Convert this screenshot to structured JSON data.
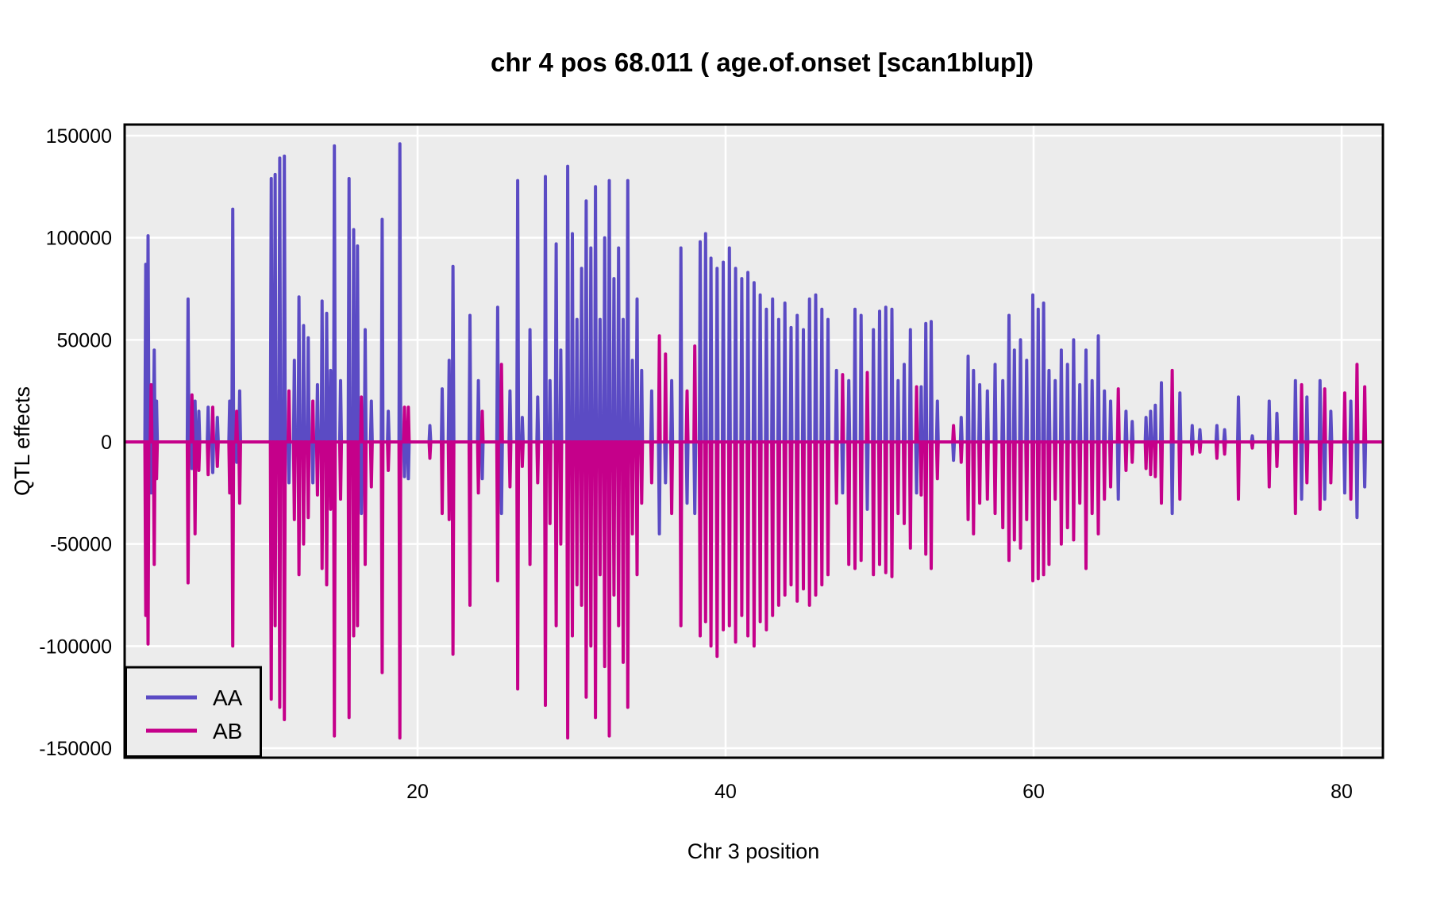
{
  "title": "chr 4 pos 68.011 ( age.of.onset  [scan1blup])",
  "chart_data": {
    "type": "line",
    "title": "chr 4 pos 68.011 ( age.of.onset  [scan1blup])",
    "xlabel": "Chr 3 position",
    "ylabel": "QTL effects",
    "x_ticks": [
      20,
      40,
      60,
      80
    ],
    "y_ticks": [
      150000,
      100000,
      50000,
      0,
      -50000,
      -100000,
      -150000
    ],
    "xlim": [
      1.0,
      82.7
    ],
    "ylim": [
      -155000,
      155400
    ],
    "grid": {
      "major_gridlines": true,
      "minor_gridlines": false
    },
    "legend": {
      "position": "bottom-left",
      "entries": [
        {
          "label": "AA",
          "color": "#5b4bc4"
        },
        {
          "label": "AB",
          "color": "#c5008a"
        }
      ]
    },
    "series_model": "Each triplet is [chr3_position, AA_effect, AB_effect]; both series sit at 0 between spikes (baseline drawn across full x-range).",
    "spikes": [
      [
        2.35,
        87000,
        -85000
      ],
      [
        2.5,
        101000,
        -99000
      ],
      [
        2.7,
        -25000,
        28000
      ],
      [
        2.9,
        45000,
        -60000
      ],
      [
        3.05,
        20000,
        -18000
      ],
      [
        5.1,
        70000,
        -69000
      ],
      [
        5.35,
        -13000,
        23000
      ],
      [
        5.55,
        20000,
        -45000
      ],
      [
        5.8,
        15000,
        -14000
      ],
      [
        6.4,
        17000,
        -16000
      ],
      [
        6.7,
        -15000,
        17000
      ],
      [
        7.0,
        12000,
        -12000
      ],
      [
        7.8,
        20000,
        -25000
      ],
      [
        8.0,
        114000,
        -100000
      ],
      [
        8.25,
        -10000,
        15000
      ],
      [
        8.45,
        25000,
        -30000
      ],
      [
        10.5,
        129000,
        -126000
      ],
      [
        10.75,
        131000,
        -90000
      ],
      [
        11.05,
        139000,
        -130000
      ],
      [
        11.35,
        140000,
        -136000
      ],
      [
        11.65,
        -20000,
        25000
      ],
      [
        12.0,
        40000,
        -38000
      ],
      [
        12.3,
        71000,
        -65000
      ],
      [
        12.6,
        57000,
        -50000
      ],
      [
        12.9,
        51000,
        -37000
      ],
      [
        13.2,
        -20000,
        20000
      ],
      [
        13.5,
        28000,
        -26000
      ],
      [
        13.8,
        69000,
        -62000
      ],
      [
        14.1,
        63000,
        -70000
      ],
      [
        14.35,
        35000,
        -33000
      ],
      [
        14.6,
        145000,
        -144000
      ],
      [
        15.0,
        30000,
        -28000
      ],
      [
        15.55,
        129000,
        -135000
      ],
      [
        15.85,
        104000,
        -95000
      ],
      [
        16.1,
        96000,
        -90000
      ],
      [
        16.35,
        -35000,
        22000
      ],
      [
        16.6,
        55000,
        -60000
      ],
      [
        17.0,
        20000,
        -22000
      ],
      [
        17.7,
        109000,
        -113000
      ],
      [
        18.1,
        15000,
        -14000
      ],
      [
        18.85,
        146000,
        -145000
      ],
      [
        19.15,
        -17000,
        17000
      ],
      [
        19.4,
        -18000,
        17000
      ],
      [
        20.8,
        8000,
        -8000
      ],
      [
        21.6,
        26000,
        -35000
      ],
      [
        22.05,
        40000,
        -38000
      ],
      [
        22.3,
        86000,
        -104000
      ],
      [
        23.4,
        62000,
        -80000
      ],
      [
        23.95,
        30000,
        -25000
      ],
      [
        24.2,
        -18000,
        15000
      ],
      [
        25.2,
        66000,
        -68000
      ],
      [
        25.45,
        -35000,
        38000
      ],
      [
        26.0,
        25000,
        -22000
      ],
      [
        26.5,
        128000,
        -121000
      ],
      [
        26.8,
        12000,
        -12000
      ],
      [
        27.3,
        55000,
        -60000
      ],
      [
        27.8,
        22000,
        -20000
      ],
      [
        28.3,
        130000,
        -129000
      ],
      [
        28.6,
        30000,
        -40000
      ],
      [
        29.0,
        97000,
        -90000
      ],
      [
        29.3,
        45000,
        -50000
      ],
      [
        29.75,
        135000,
        -145000
      ],
      [
        30.05,
        102000,
        -95000
      ],
      [
        30.35,
        60000,
        -70000
      ],
      [
        30.65,
        85000,
        -80000
      ],
      [
        30.95,
        118000,
        -125000
      ],
      [
        31.25,
        95000,
        -100000
      ],
      [
        31.55,
        125000,
        -135000
      ],
      [
        31.85,
        60000,
        -65000
      ],
      [
        32.15,
        100000,
        -110000
      ],
      [
        32.45,
        128000,
        -144000
      ],
      [
        32.75,
        80000,
        -75000
      ],
      [
        33.05,
        95000,
        -90000
      ],
      [
        33.35,
        60000,
        -108000
      ],
      [
        33.65,
        128000,
        -130000
      ],
      [
        33.95,
        40000,
        -45000
      ],
      [
        34.25,
        70000,
        -65000
      ],
      [
        34.55,
        35000,
        -30000
      ],
      [
        35.2,
        25000,
        -20000
      ],
      [
        35.7,
        -45000,
        52000
      ],
      [
        36.1,
        -20000,
        43000
      ],
      [
        36.5,
        30000,
        -35000
      ],
      [
        37.1,
        95000,
        -90000
      ],
      [
        37.5,
        -30000,
        25000
      ],
      [
        38.0,
        -35000,
        47000
      ],
      [
        38.35,
        98000,
        -95000
      ],
      [
        38.7,
        102000,
        -88000
      ],
      [
        39.05,
        90000,
        -100000
      ],
      [
        39.45,
        85000,
        -105000
      ],
      [
        39.85,
        88000,
        -92000
      ],
      [
        40.25,
        95000,
        -90000
      ],
      [
        40.65,
        85000,
        -98000
      ],
      [
        41.05,
        80000,
        -85000
      ],
      [
        41.45,
        83000,
        -95000
      ],
      [
        41.85,
        78000,
        -100000
      ],
      [
        42.25,
        72000,
        -88000
      ],
      [
        42.65,
        65000,
        -92000
      ],
      [
        43.05,
        70000,
        -85000
      ],
      [
        43.45,
        60000,
        -80000
      ],
      [
        43.85,
        68000,
        -75000
      ],
      [
        44.25,
        56000,
        -70000
      ],
      [
        44.65,
        62000,
        -78000
      ],
      [
        45.05,
        55000,
        -72000
      ],
      [
        45.45,
        70000,
        -80000
      ],
      [
        45.85,
        72000,
        -75000
      ],
      [
        46.25,
        65000,
        -70000
      ],
      [
        46.65,
        60000,
        -65000
      ],
      [
        47.2,
        35000,
        -30000
      ],
      [
        47.6,
        -25000,
        33000
      ],
      [
        48.0,
        30000,
        -60000
      ],
      [
        48.4,
        65000,
        -62000
      ],
      [
        48.8,
        62000,
        -58000
      ],
      [
        49.2,
        -33000,
        34000
      ],
      [
        49.6,
        55000,
        -65000
      ],
      [
        50.0,
        64000,
        -60000
      ],
      [
        50.4,
        66000,
        -64000
      ],
      [
        50.8,
        65000,
        -66000
      ],
      [
        51.2,
        30000,
        -35000
      ],
      [
        51.6,
        38000,
        -40000
      ],
      [
        52.0,
        55000,
        -52000
      ],
      [
        52.4,
        -25000,
        27000
      ],
      [
        52.7,
        27000,
        -26000
      ],
      [
        53.0,
        58000,
        -55000
      ],
      [
        53.35,
        59000,
        -62000
      ],
      [
        53.75,
        20000,
        -18000
      ],
      [
        54.8,
        -9000,
        8000
      ],
      [
        55.3,
        12000,
        -10000
      ],
      [
        55.75,
        42000,
        -38000
      ],
      [
        56.1,
        35000,
        -45000
      ],
      [
        56.5,
        28000,
        -30000
      ],
      [
        57.0,
        25000,
        -28000
      ],
      [
        57.5,
        38000,
        -35000
      ],
      [
        58.0,
        30000,
        -42000
      ],
      [
        58.4,
        62000,
        -58000
      ],
      [
        58.75,
        45000,
        -48000
      ],
      [
        59.15,
        50000,
        -52000
      ],
      [
        59.55,
        40000,
        -38000
      ],
      [
        59.95,
        72000,
        -68000
      ],
      [
        60.3,
        65000,
        -67000
      ],
      [
        60.65,
        68000,
        -65000
      ],
      [
        61.0,
        35000,
        -60000
      ],
      [
        61.4,
        30000,
        -28000
      ],
      [
        61.8,
        45000,
        -50000
      ],
      [
        62.2,
        38000,
        -42000
      ],
      [
        62.6,
        50000,
        -48000
      ],
      [
        63.0,
        28000,
        -30000
      ],
      [
        63.4,
        45000,
        -62000
      ],
      [
        63.8,
        30000,
        -35000
      ],
      [
        64.2,
        52000,
        -45000
      ],
      [
        64.6,
        25000,
        -28000
      ],
      [
        65.0,
        20000,
        -22000
      ],
      [
        65.5,
        -28000,
        26000
      ],
      [
        66.0,
        15000,
        -14000
      ],
      [
        66.4,
        10000,
        -10000
      ],
      [
        67.3,
        12000,
        -13000
      ],
      [
        67.6,
        15000,
        -16000
      ],
      [
        67.9,
        18000,
        -17000
      ],
      [
        68.3,
        29000,
        -30000
      ],
      [
        69.0,
        -35000,
        35000
      ],
      [
        69.5,
        24000,
        -28000
      ],
      [
        70.3,
        8000,
        -6000
      ],
      [
        70.8,
        6000,
        -5000
      ],
      [
        71.9,
        8000,
        -8000
      ],
      [
        72.4,
        6000,
        -6000
      ],
      [
        73.3,
        22000,
        -28000
      ],
      [
        74.2,
        3000,
        -3000
      ],
      [
        75.3,
        20000,
        -22000
      ],
      [
        75.8,
        14000,
        -12000
      ],
      [
        77.0,
        30000,
        -35000
      ],
      [
        77.4,
        -28000,
        28000
      ],
      [
        77.75,
        22000,
        -20000
      ],
      [
        78.6,
        30000,
        -33000
      ],
      [
        78.9,
        -28000,
        26000
      ],
      [
        79.3,
        15000,
        -20000
      ],
      [
        80.2,
        -25000,
        24000
      ],
      [
        80.6,
        20000,
        -28000
      ],
      [
        81.0,
        -37000,
        38000
      ],
      [
        81.5,
        -22000,
        27000
      ]
    ]
  },
  "colors": {
    "page_background": "#ffffff",
    "panel_background": "#ececec",
    "gridline": "#ffffff",
    "panel_border": "#000000",
    "aa_line": "#5b4bc4",
    "ab_line": "#c5008a",
    "text": "#000000"
  }
}
